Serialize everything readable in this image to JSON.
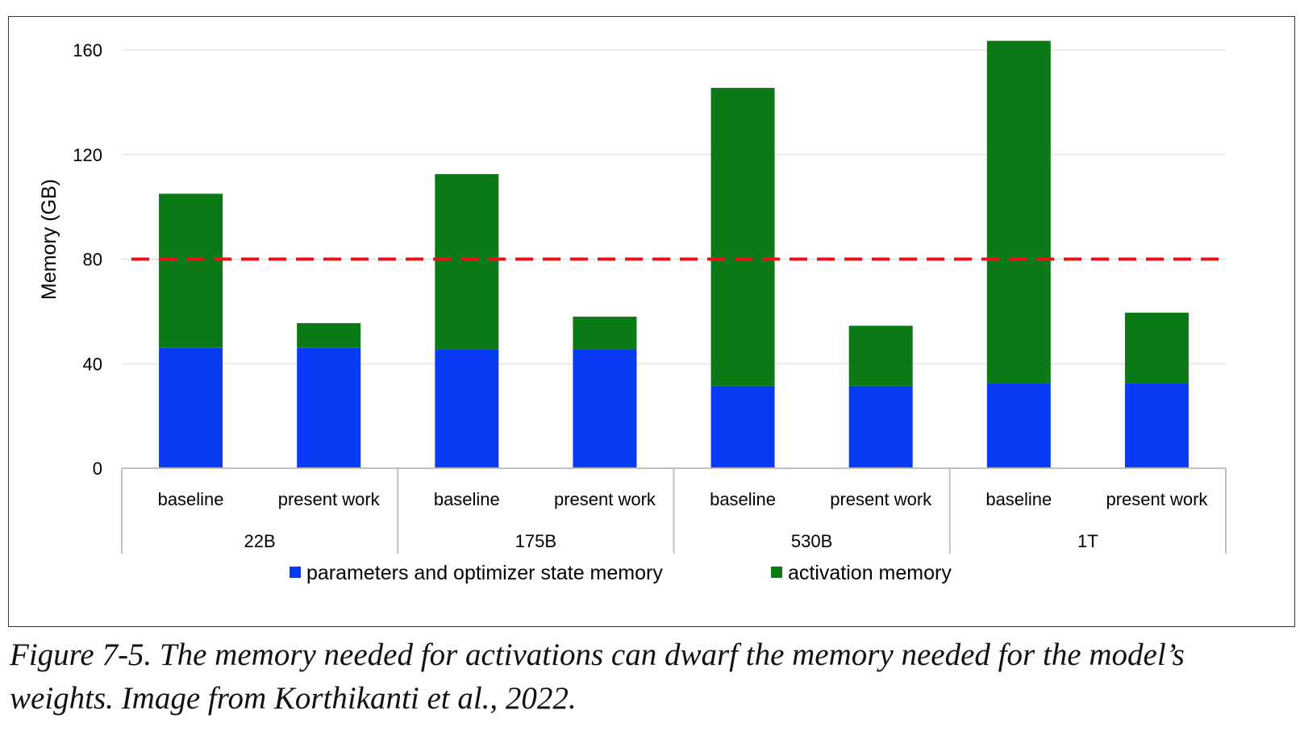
{
  "chart_data": {
    "type": "bar",
    "stacked": true,
    "ylabel": "Memory (GB)",
    "xlabel": "",
    "ylim": [
      0,
      160
    ],
    "yticks": [
      0,
      40,
      80,
      120,
      160
    ],
    "grid": true,
    "legend_position": "bottom",
    "groups": [
      {
        "label": "22B",
        "categories": [
          "baseline",
          "present work"
        ]
      },
      {
        "label": "175B",
        "categories": [
          "baseline",
          "present work"
        ]
      },
      {
        "label": "530B",
        "categories": [
          "baseline",
          "present work"
        ]
      },
      {
        "label": "1T",
        "categories": [
          "baseline",
          "present work"
        ]
      }
    ],
    "series": [
      {
        "name": "parameters and optimizer state memory",
        "color": "#0b3af5",
        "values": [
          46,
          46,
          45.5,
          45.5,
          31.5,
          31.5,
          32.5,
          32.5
        ]
      },
      {
        "name": "activation memory",
        "color": "#0b7a16",
        "values": [
          59,
          9.5,
          67,
          12.5,
          114,
          23,
          131,
          27
        ]
      }
    ],
    "reference_line": {
      "value": 80,
      "color": "#e8131b",
      "style": "dashed"
    }
  },
  "caption": "Figure 7-5. The memory needed for activations can dwarf the memory needed for the model’s weights. Image from Korthikanti et al., 2022."
}
